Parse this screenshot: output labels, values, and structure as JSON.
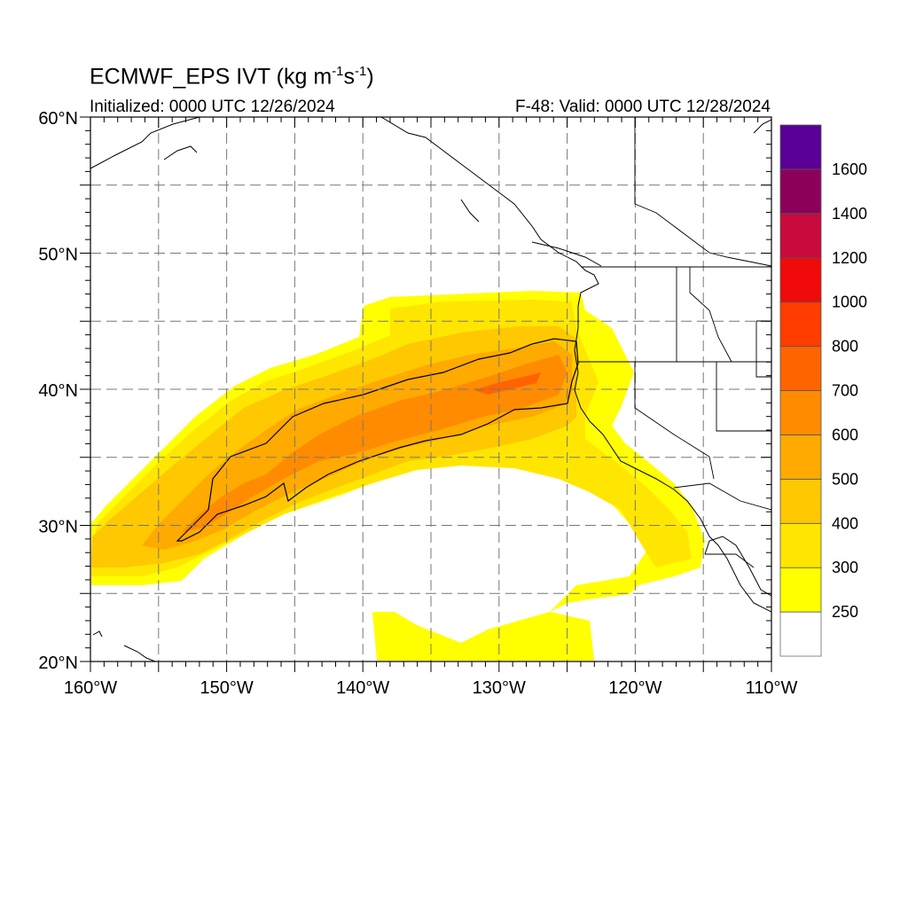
{
  "header": {
    "title_main": "ECMWF_EPS IVT (kg m",
    "title_exp1": "-1",
    "title_mid": "s",
    "title_exp2": "-1",
    "title_end": ")",
    "init_text": "Initialized: 0000 UTC 12/26/2024",
    "valid_text": "F-48: Valid: 0000 UTC 12/28/2024"
  },
  "map": {
    "lon_range": [
      -160,
      -110
    ],
    "lat_range": [
      20,
      60
    ],
    "x_ticks": [
      {
        "value": -160,
        "label": "160°W"
      },
      {
        "value": -150,
        "label": "150°W"
      },
      {
        "value": -140,
        "label": "140°W"
      },
      {
        "value": -130,
        "label": "130°W"
      },
      {
        "value": -120,
        "label": "120°W"
      },
      {
        "value": -110,
        "label": "110°W"
      }
    ],
    "y_ticks": [
      {
        "value": 60,
        "label": "60°N"
      },
      {
        "value": 50,
        "label": "50°N"
      },
      {
        "value": 40,
        "label": "40°N"
      },
      {
        "value": 30,
        "label": "30°N"
      },
      {
        "value": 20,
        "label": "20°N"
      }
    ],
    "grid_lon_step": 5,
    "grid_lat_step": 5,
    "grid": "dashed"
  },
  "colorbar": {
    "levels": [
      {
        "label": "250",
        "color": "#ffff00"
      },
      {
        "label": "300",
        "color": "#ffe600"
      },
      {
        "label": "400",
        "color": "#ffc800"
      },
      {
        "label": "500",
        "color": "#ffaa00"
      },
      {
        "label": "600",
        "color": "#ff8c00"
      },
      {
        "label": "700",
        "color": "#ff6400"
      },
      {
        "label": "800",
        "color": "#ff3c00"
      },
      {
        "label": "1000",
        "color": "#f00a0a"
      },
      {
        "label": "1200",
        "color": "#c80a3c"
      },
      {
        "label": "1400",
        "color": "#8c005a"
      },
      {
        "label": "1600",
        "color": "#5a0096"
      }
    ],
    "below_color": "#ffffff"
  }
}
